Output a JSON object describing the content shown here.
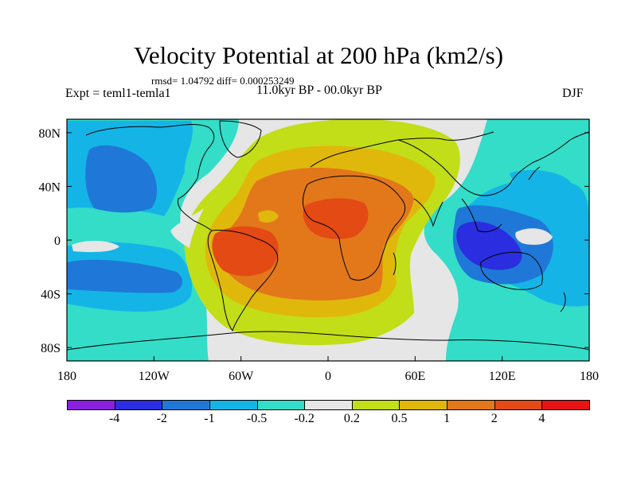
{
  "header": {
    "title": "Velocity Potential at 200 hPa (km2/s)",
    "stats": "rmsd= 1.04792 diff= 0.000253249",
    "experiment": "Expt = teml1-temla1",
    "period": "11.0kyr BP - 00.0kyr BP",
    "season": "DJF"
  },
  "axes": {
    "lat_labels": [
      "80N",
      "40N",
      "0",
      "40S",
      "80S"
    ],
    "lat_values": [
      80,
      40,
      0,
      -40,
      -80
    ],
    "lon_labels": [
      "180",
      "120W",
      "60W",
      "0",
      "60E",
      "120E",
      "180"
    ],
    "lon_values": [
      -180,
      -120,
      -60,
      0,
      60,
      120,
      180
    ]
  },
  "colorbar": {
    "colors": [
      "#8a1fe0",
      "#2a2ee0",
      "#1f78d8",
      "#14b5e6",
      "#33ddc8",
      "#e6e6e6",
      "#c2de18",
      "#e0b80c",
      "#e2781a",
      "#e44a14",
      "#e61414"
    ],
    "labels": [
      "-4",
      "-2",
      "-1",
      "-0.5",
      "-0.2",
      "0.2",
      "0.5",
      "1",
      "2",
      "4"
    ]
  },
  "colors": {
    "neg_weak": "#33ddc8",
    "neg_mid": "#14b5e6",
    "neg_strong": "#1f78d8",
    "neg_max": "#2a2ee0",
    "neutral": "#e6e6e6",
    "pos_weak": "#c2de18",
    "pos_mid": "#e0b80c",
    "pos_strong": "#e2781a",
    "pos_max": "#e44a14"
  }
}
